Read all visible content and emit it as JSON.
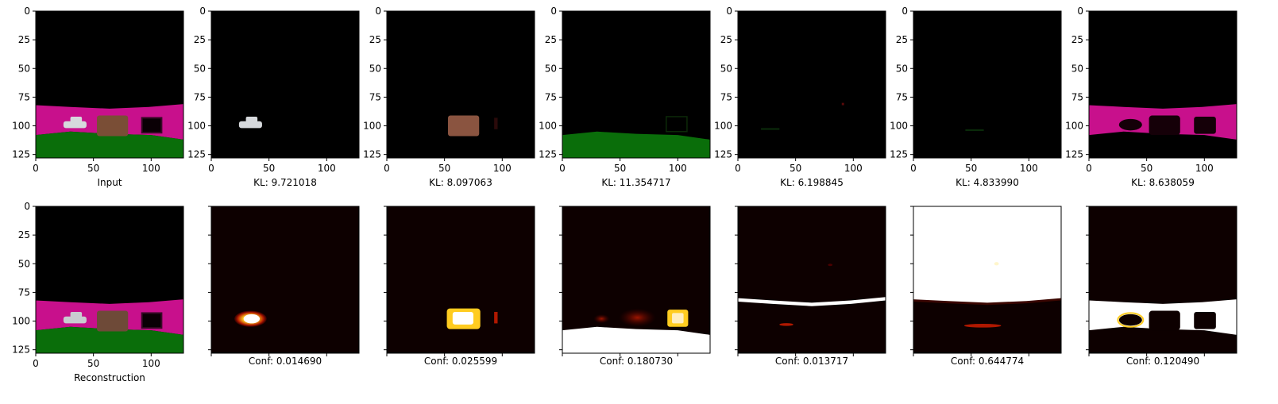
{
  "figure": {
    "layout": "2 rows x 7 panels",
    "axis": {
      "x_range": [
        0,
        128
      ],
      "y_range": [
        0,
        128
      ],
      "x_ticks": [
        0,
        50,
        100
      ],
      "y_ticks": [
        0,
        25,
        50,
        75,
        100,
        125
      ]
    }
  },
  "chart_data": [
    {
      "type": "image",
      "row": 1,
      "col": 1,
      "content": "input-scene",
      "caption": "Input",
      "tick_labels": true
    },
    {
      "type": "image",
      "row": 1,
      "col": 2,
      "content": "slot-car",
      "caption": "KL: 9.721018",
      "kl": 9.721018,
      "tick_labels": true
    },
    {
      "type": "image",
      "row": 1,
      "col": 3,
      "content": "slot-box",
      "caption": "KL: 8.097063",
      "kl": 8.097063,
      "tick_labels": true
    },
    {
      "type": "image",
      "row": 1,
      "col": 4,
      "content": "slot-ground",
      "caption": "KL: 11.354717",
      "kl": 11.354717,
      "tick_labels": true
    },
    {
      "type": "image",
      "row": 1,
      "col": 5,
      "content": "slot-empty",
      "caption": "KL: 6.198845",
      "kl": 6.198845,
      "tick_labels": true
    },
    {
      "type": "image",
      "row": 1,
      "col": 6,
      "content": "slot-empty2",
      "caption": "KL: 4.833990",
      "kl": 4.83399,
      "tick_labels": true
    },
    {
      "type": "image",
      "row": 1,
      "col": 7,
      "content": "slot-wall",
      "caption": "KL: 8.638059",
      "kl": 8.638059,
      "tick_labels": true
    },
    {
      "type": "image",
      "row": 2,
      "col": 1,
      "content": "reconstruction-scene",
      "caption": "Reconstruction",
      "tick_labels": true
    },
    {
      "type": "heatmap",
      "row": 2,
      "col": 2,
      "content": "mask-car",
      "caption": "Conf: 0.014690",
      "conf": 0.01469,
      "tick_labels": false
    },
    {
      "type": "heatmap",
      "row": 2,
      "col": 3,
      "content": "mask-box",
      "caption": "Conf: 0.025599",
      "conf": 0.025599,
      "tick_labels": false
    },
    {
      "type": "heatmap",
      "row": 2,
      "col": 4,
      "content": "mask-ground",
      "caption": "Conf: 0.180730",
      "conf": 0.18073,
      "tick_labels": false
    },
    {
      "type": "heatmap",
      "row": 2,
      "col": 5,
      "content": "mask-band",
      "caption": "Conf: 0.013717",
      "conf": 0.013717,
      "tick_labels": false
    },
    {
      "type": "heatmap",
      "row": 2,
      "col": 6,
      "content": "mask-sky",
      "caption": "Conf: 0.644774",
      "conf": 0.644774,
      "tick_labels": false
    },
    {
      "type": "heatmap",
      "row": 2,
      "col": 7,
      "content": "mask-wall",
      "caption": "Conf: 0.120490",
      "conf": 0.12049,
      "tick_labels": false
    }
  ],
  "colors": {
    "black": "#000000",
    "magenta": "#c8108c",
    "green": "#0a6e0a",
    "brown": "#7a4e36",
    "car": "#d6d9dc",
    "heat_bg": "#0d0000",
    "heat_low": "#4a0000",
    "heat_mid": "#b01800",
    "heat_hi": "#ffcc20",
    "heat_max": "#ffffff"
  }
}
